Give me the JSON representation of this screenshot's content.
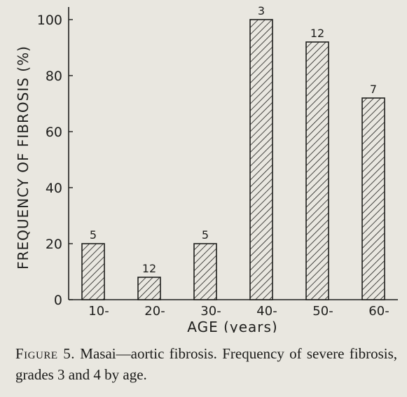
{
  "caption": {
    "figure_label": "Figure 5.",
    "text": "Masai—aortic fibrosis. Frequency of severe fibrosis, grades 3 and 4 by age."
  },
  "colors": {
    "ink": "#1e1e1c",
    "paper": "#e9e7e0"
  },
  "chart_data": {
    "type": "bar",
    "title": "",
    "xlabel": "AGE (years)",
    "ylabel": "FREQUENCY OF FIBROSIS (%)",
    "categories": [
      "10-",
      "20-",
      "30-",
      "40-",
      "50-",
      "60-"
    ],
    "values": [
      20,
      8,
      20,
      100,
      92,
      72
    ],
    "bar_labels": [
      "5",
      "12",
      "5",
      "3",
      "12",
      "7"
    ],
    "ylim": [
      0,
      100
    ],
    "yticks": [
      "0",
      "20",
      "40",
      "60",
      "80",
      "100"
    ],
    "fill": "diagonal hatch",
    "grid": false
  }
}
